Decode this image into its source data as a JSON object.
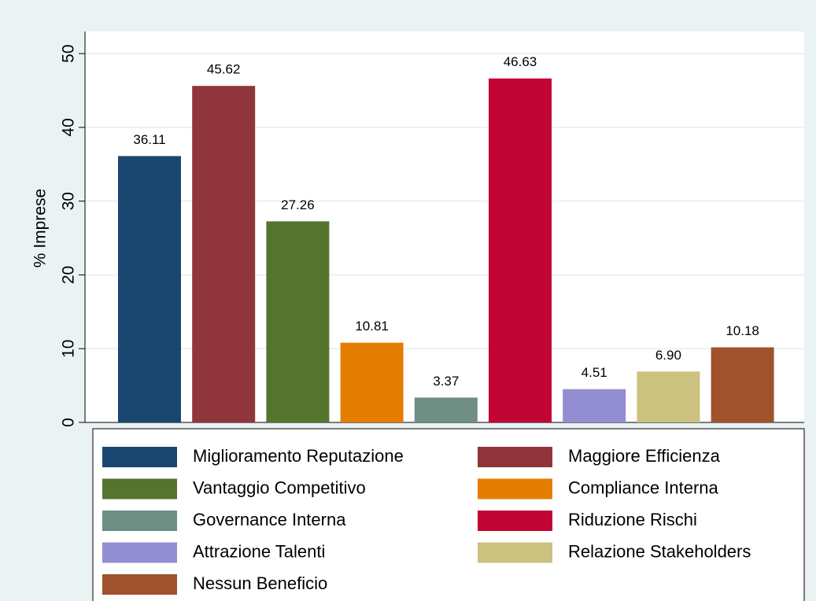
{
  "chart_data": {
    "type": "bar",
    "y_label": "% Imprese",
    "series": [
      {
        "name": "Miglioramento Reputazione",
        "color": "#1a476f",
        "values": [
          36.11
        ],
        "value_labels": [
          "36.11"
        ]
      },
      {
        "name": "Maggiore Efficienza",
        "color": "#90353b",
        "values": [
          45.62
        ],
        "value_labels": [
          "45.62"
        ]
      },
      {
        "name": "Vantaggio Competitivo",
        "color": "#55752f",
        "values": [
          27.26
        ],
        "value_labels": [
          "27.26"
        ]
      },
      {
        "name": "Compliance Interna",
        "color": "#e37e00",
        "values": [
          10.81
        ],
        "value_labels": [
          "10.81"
        ]
      },
      {
        "name": "Governance Interna",
        "color": "#6e8e84",
        "values": [
          3.37
        ],
        "value_labels": [
          "3.37"
        ]
      },
      {
        "name": "Riduzione Rischi",
        "color": "#c10534",
        "values": [
          46.63
        ],
        "value_labels": [
          "46.63"
        ]
      },
      {
        "name": "Attrazione Talenti",
        "color": "#938dd2",
        "values": [
          4.51
        ],
        "value_labels": [
          "4.51"
        ]
      },
      {
        "name": "Relazione Stakeholders",
        "color": "#cac27e",
        "values": [
          6.9
        ],
        "value_labels": [
          "6.90"
        ]
      },
      {
        "name": "Nessun Beneficio",
        "color": "#a0522d",
        "values": [
          10.18
        ],
        "value_labels": [
          "10.18"
        ]
      }
    ],
    "ylim": [
      0,
      53
    ],
    "yticks": [
      0,
      10,
      20,
      30,
      40,
      50
    ],
    "grid": true,
    "legend": "bottom"
  }
}
